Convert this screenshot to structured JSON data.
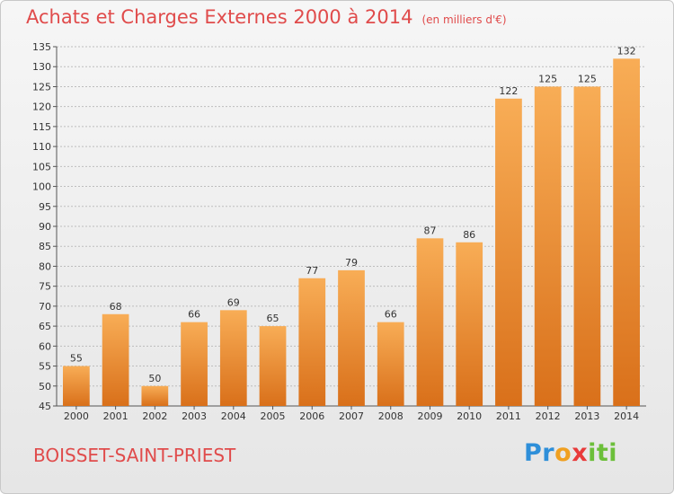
{
  "header": {
    "title": "Achats et Charges Externes 2000 à 2014",
    "unit": "(en milliers d'€)"
  },
  "footer": {
    "commune": "BOISSET-SAINT-PRIEST",
    "logo_letters": [
      "P",
      "r",
      "o",
      "x",
      "i",
      "t",
      "i"
    ],
    "logo_colors": [
      "#2e8fd9",
      "#2e8fd9",
      "#f0a020",
      "#e83a3a",
      "#6cbf3a",
      "#6cbf3a",
      "#6cbf3a"
    ]
  },
  "chart_data": {
    "type": "bar",
    "title": "Achats et Charges Externes 2000 à 2014",
    "subtitle": "(en milliers d'€)",
    "categories": [
      "2000",
      "2001",
      "2002",
      "2003",
      "2004",
      "2005",
      "2006",
      "2007",
      "2008",
      "2009",
      "2010",
      "2011",
      "2012",
      "2013",
      "2014"
    ],
    "values": [
      55,
      68,
      50,
      66,
      69,
      65,
      77,
      79,
      66,
      87,
      86,
      122,
      125,
      125,
      132
    ],
    "ylim": [
      45,
      135
    ],
    "yticks": [
      45,
      50,
      55,
      60,
      65,
      70,
      75,
      80,
      85,
      90,
      95,
      100,
      105,
      110,
      115,
      120,
      125,
      130,
      135
    ],
    "grid": true,
    "bar_color": "#f0912f",
    "xlabel": "",
    "ylabel": ""
  }
}
